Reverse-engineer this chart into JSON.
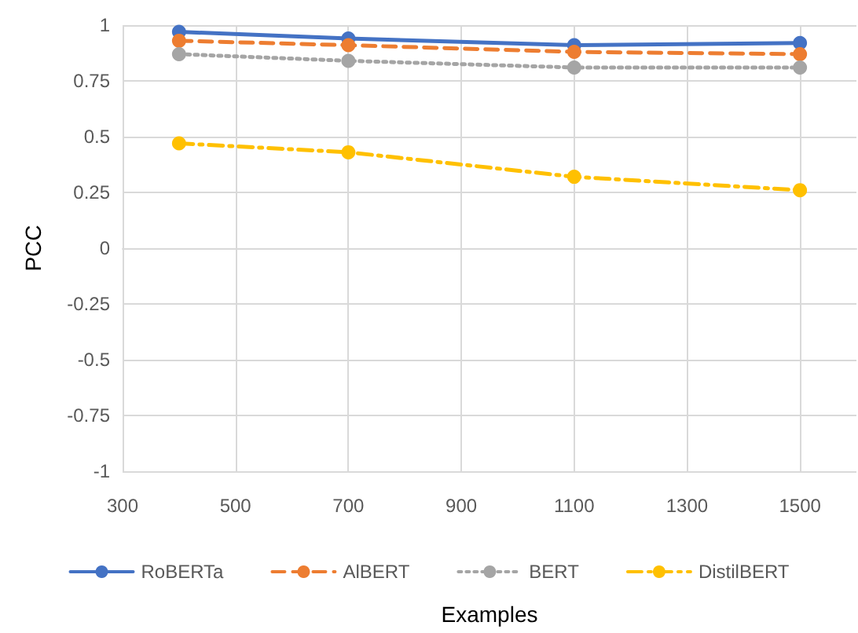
{
  "chart_data": {
    "type": "line",
    "xlabel": "Examples",
    "ylabel": "PCC",
    "x": [
      400,
      700,
      1100,
      1500
    ],
    "series": [
      {
        "name": "RoBERTa",
        "color": "#4472c4",
        "values": [
          0.97,
          0.94,
          0.91,
          0.92
        ],
        "line_style": "solid"
      },
      {
        "name": "AlBERT",
        "color": "#ed7d31",
        "values": [
          0.93,
          0.91,
          0.88,
          0.87
        ],
        "line_style": "dashed"
      },
      {
        "name": "BERT",
        "color": "#a5a5a5",
        "values": [
          0.87,
          0.84,
          0.81,
          0.81
        ],
        "line_style": "dotted"
      },
      {
        "name": "DistilBERT",
        "color": "#ffc000",
        "values": [
          0.47,
          0.43,
          0.32,
          0.26
        ],
        "line_style": "dashdot"
      }
    ],
    "xlim": [
      300,
      1600
    ],
    "xticks": [
      300,
      500,
      700,
      900,
      1100,
      1300,
      1500
    ],
    "ylim": [
      -1,
      1
    ],
    "yticks": [
      -1,
      -0.75,
      -0.5,
      -0.25,
      0,
      0.25,
      0.5,
      0.75,
      1
    ],
    "grid": true,
    "legend": "bottom",
    "marker": "circle"
  }
}
